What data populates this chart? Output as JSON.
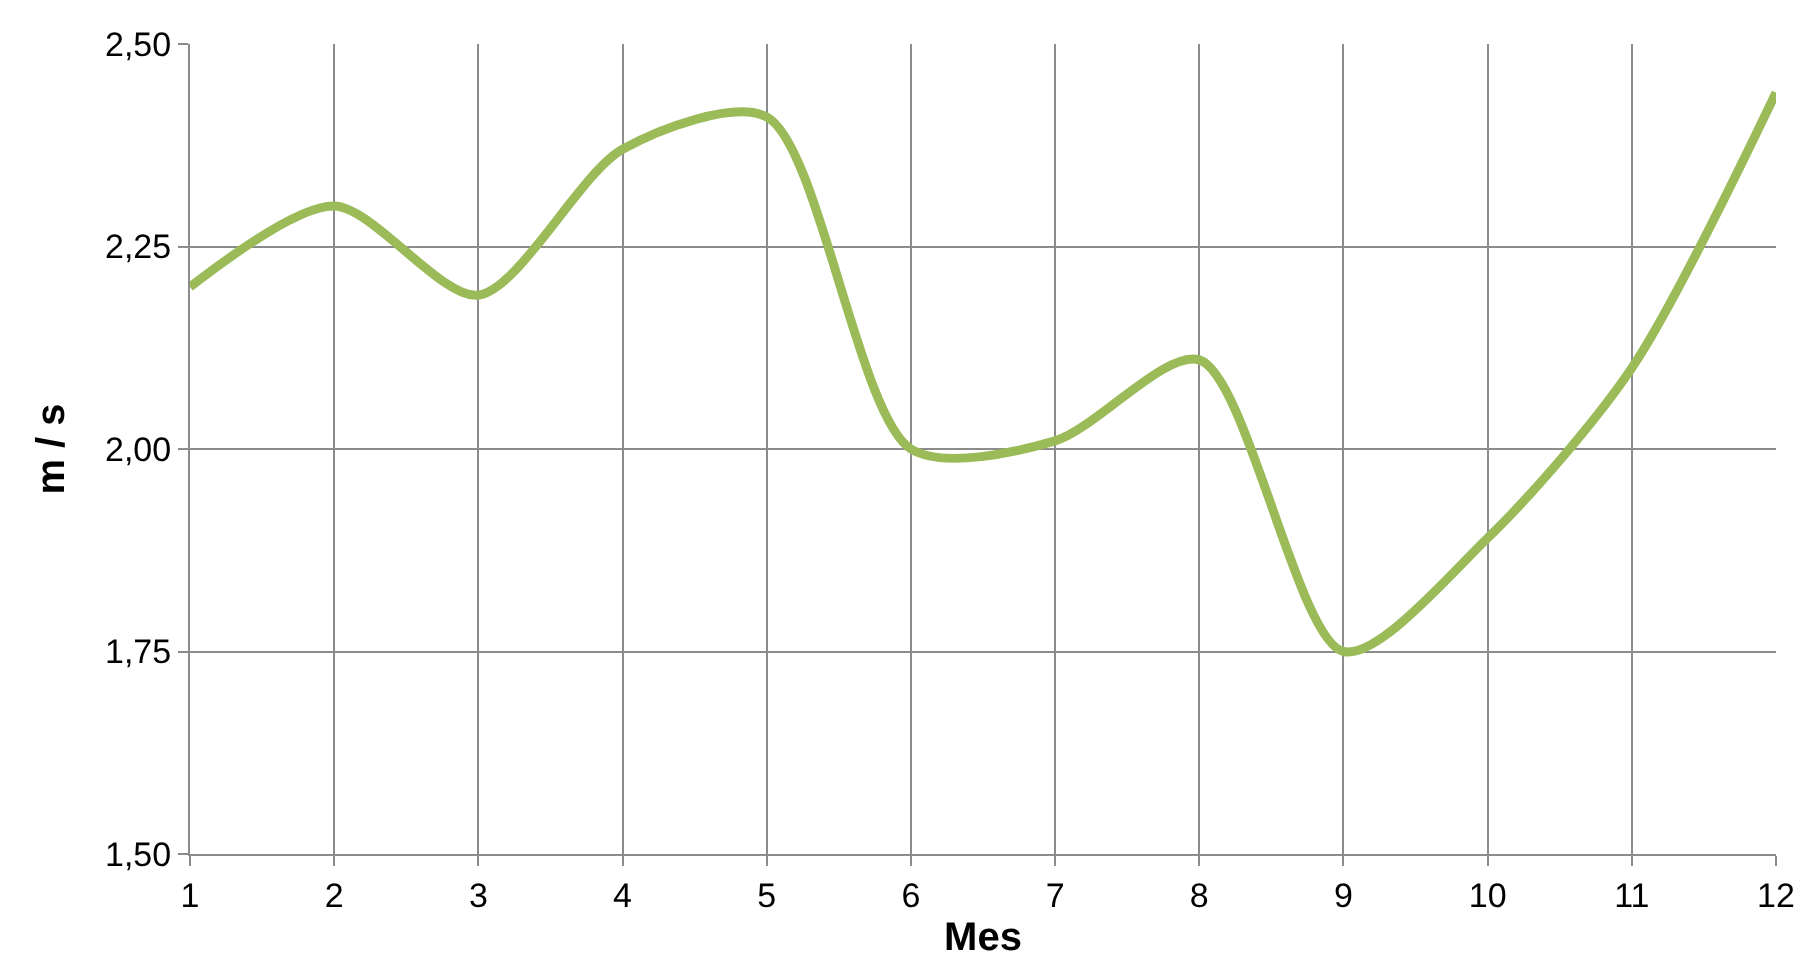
{
  "chart_data": {
    "type": "line",
    "xlabel": "Mes",
    "ylabel": "m / s",
    "x": [
      1,
      2,
      3,
      4,
      5,
      6,
      7,
      8,
      9,
      10,
      11,
      12
    ],
    "series": [
      {
        "color": "#9bbb59",
        "values": [
          2.2,
          2.3,
          2.19,
          2.37,
          2.41,
          2.0,
          2.01,
          2.11,
          1.75,
          1.89,
          2.1,
          2.44
        ]
      }
    ],
    "xlim": [
      1,
      12
    ],
    "xticks": [
      1,
      2,
      3,
      4,
      5,
      6,
      7,
      8,
      9,
      10,
      11,
      12
    ],
    "ylim": [
      1.5,
      2.5
    ],
    "yticks": [
      {
        "value": 1.5,
        "label": "1,50"
      },
      {
        "value": 1.75,
        "label": "1,75"
      },
      {
        "value": 2.0,
        "label": "2,00"
      },
      {
        "value": 2.25,
        "label": "2,25"
      },
      {
        "value": 2.5,
        "label": "2,50"
      }
    ],
    "grid": true,
    "marker": "none",
    "line_style": "solid"
  }
}
